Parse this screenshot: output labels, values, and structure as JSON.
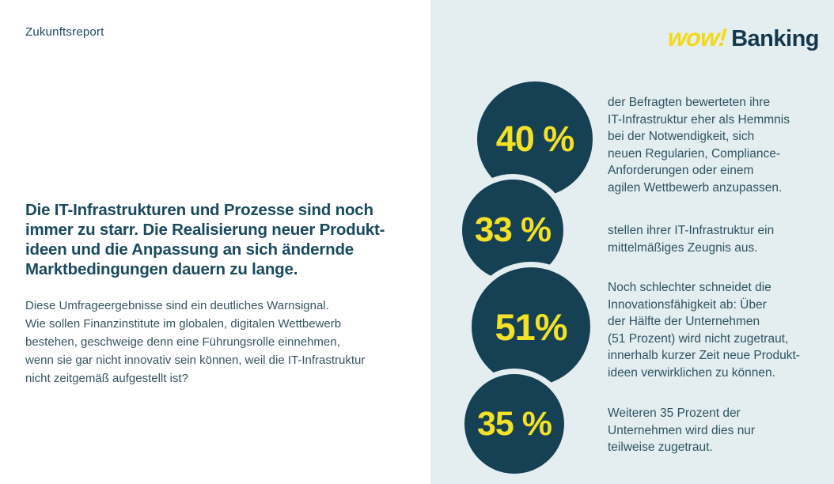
{
  "page": {
    "eyebrow": "Zukunftsreport",
    "headline": "Die IT-Infrastrukturen und Prozesse sind noch\nimmer zu starr. Die Realisierung neuer Produkt-\nideen und die Anpassung an sich ändernde\nMarktbedingungen dauern zu lange.",
    "body": "Diese Umfrageergebnisse sind ein deutliches Warnsignal.\nWie sollen Finanzinstitute im globalen, digitalen Wettbewerb\nbestehen, geschweige denn eine Führungsrolle einnehmen,\nwenn sie gar nicht innovativ sein können, weil die IT-Infrastruktur\nnicht zeitgemäß aufgestellt ist?"
  },
  "logo": {
    "wow": "wow!",
    "banking": "Banking"
  },
  "stats": [
    {
      "value": "40 %",
      "text": "der Befragten bewerteten ihre\nIT-Infrastruktur eher als Hemmnis\nbei der Notwendigkeit, sich\nneuen Regularien, Compliance-\nAnforderungen oder einem\nagilen Wettbewerb anzupassen."
    },
    {
      "value": "33 %",
      "text": "stellen ihrer IT-Infrastruktur ein\nmittelmäßiges Zeugnis aus."
    },
    {
      "value": "51%",
      "text": "Noch schlechter schneidet die\nInnovationsfähigkeit ab: Über\nder Hälfte der Unternehmen\n(51 Prozent) wird nicht zugetraut,\ninnerhalb kurzer Zeit neue Produkt-\nideen verwirklichen zu können."
    },
    {
      "value": "35 %",
      "text": "Weiteren 35 Prozent der\nUnternehmen wird dies nur\nteilweise zugetraut."
    }
  ],
  "colors": {
    "panel_background": "#E4EEF0",
    "circle_fill": "#164053",
    "percent_yellow": "#F3E127",
    "logo_yellow": "#F3D916",
    "dark_teal_text": "#1A4A5E"
  }
}
